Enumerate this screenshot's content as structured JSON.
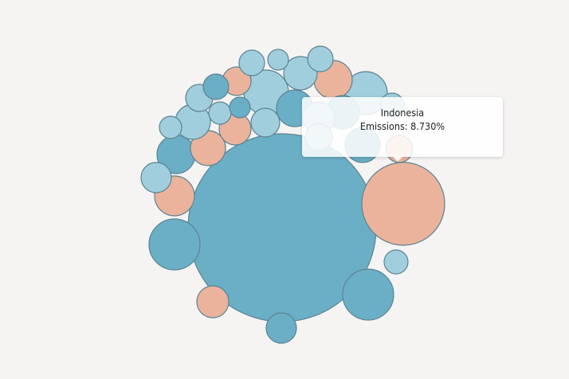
{
  "chart_data": {
    "type": "bubble",
    "colors": {
      "dark_blue": "#6aafc5",
      "light_blue": "#a0cedd",
      "salmon": "#ebb39c",
      "stroke": "#5c8392"
    },
    "bubbles": [
      {
        "r": 118,
        "color": "dark_blue"
      },
      {
        "r": 52,
        "color": "salmon"
      },
      {
        "r": 32,
        "color": "dark_blue"
      },
      {
        "r": 32,
        "color": "dark_blue"
      },
      {
        "r": 28,
        "color": "light_blue"
      },
      {
        "r": 27,
        "color": "light_blue"
      },
      {
        "r": 25,
        "color": "salmon"
      },
      {
        "r": 24,
        "color": "dark_blue"
      },
      {
        "r": 24,
        "color": "salmon"
      },
      {
        "r": 23,
        "color": "dark_blue"
      },
      {
        "r": 22,
        "color": "salmon"
      },
      {
        "r": 22,
        "color": "light_blue"
      },
      {
        "r": 22,
        "color": "dark_blue"
      },
      {
        "r": 21,
        "color": "light_blue"
      },
      {
        "r": 21,
        "color": "dark_blue"
      },
      {
        "r": 20,
        "color": "light_blue"
      },
      {
        "r": 20,
        "color": "salmon"
      },
      {
        "r": 20,
        "color": "salmon"
      },
      {
        "r": 19,
        "color": "light_blue"
      },
      {
        "r": 19,
        "color": "dark_blue"
      },
      {
        "r": 18,
        "color": "salmon"
      },
      {
        "r": 18,
        "color": "light_blue"
      },
      {
        "r": 17,
        "color": "light_blue"
      },
      {
        "r": 17,
        "color": "salmon"
      },
      {
        "r": 17,
        "color": "light_blue"
      },
      {
        "r": 16,
        "color": "light_blue"
      },
      {
        "r": 16,
        "color": "light_blue"
      },
      {
        "r": 16,
        "color": "dark_blue"
      },
      {
        "r": 15,
        "color": "light_blue"
      },
      {
        "r": 15,
        "color": "light_blue"
      },
      {
        "r": 14,
        "color": "light_blue"
      },
      {
        "r": 14,
        "color": "light_blue"
      },
      {
        "r": 13,
        "color": "dark_blue"
      },
      {
        "r": 13,
        "color": "light_blue"
      }
    ],
    "tooltip": {
      "country": "Indonesia",
      "text": "Emissions: 8.730%"
    }
  }
}
